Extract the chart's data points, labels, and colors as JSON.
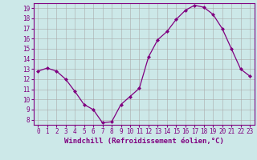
{
  "x": [
    0,
    1,
    2,
    3,
    4,
    5,
    6,
    7,
    8,
    9,
    10,
    11,
    12,
    13,
    14,
    15,
    16,
    17,
    18,
    19,
    20,
    21,
    22,
    23
  ],
  "y": [
    12.8,
    13.1,
    12.8,
    12.0,
    10.8,
    9.5,
    9.0,
    7.7,
    7.8,
    9.5,
    10.3,
    11.1,
    14.2,
    15.9,
    16.7,
    17.9,
    18.8,
    19.3,
    19.1,
    18.4,
    17.0,
    15.0,
    13.0,
    12.3
  ],
  "line_color": "#800080",
  "marker": "D",
  "marker_size": 2,
  "xlabel": "Windchill (Refroidissement éolien,°C)",
  "ylabel": "",
  "xlim": [
    -0.5,
    23.5
  ],
  "ylim": [
    7.5,
    19.5
  ],
  "yticks": [
    8,
    9,
    10,
    11,
    12,
    13,
    14,
    15,
    16,
    17,
    18,
    19
  ],
  "xticks": [
    0,
    1,
    2,
    3,
    4,
    5,
    6,
    7,
    8,
    9,
    10,
    11,
    12,
    13,
    14,
    15,
    16,
    17,
    18,
    19,
    20,
    21,
    22,
    23
  ],
  "bg_color": "#cce8e8",
  "grid_color": "#aaaaaa",
  "axis_color": "#800080",
  "font_color": "#800080",
  "font_family": "monospace",
  "tick_fontsize": 5.5,
  "xlabel_fontsize": 6.5
}
